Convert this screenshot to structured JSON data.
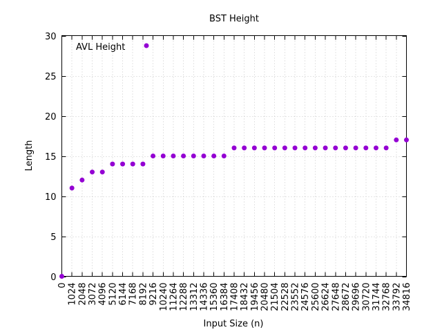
{
  "chart_data": {
    "type": "scatter",
    "title": "BST Height",
    "xlabel": "Input Size (n)",
    "ylabel": "Length",
    "xlim": [
      0,
      34816
    ],
    "ylim": [
      0,
      30
    ],
    "grid": true,
    "legend_position": "top-left",
    "xticks": [
      0,
      1024,
      2048,
      3072,
      4096,
      5120,
      6144,
      7168,
      8192,
      9216,
      10240,
      11264,
      12288,
      13312,
      14336,
      15360,
      16384,
      17408,
      18432,
      19456,
      20480,
      21504,
      22528,
      23552,
      24576,
      25600,
      26624,
      27648,
      28672,
      29696,
      30720,
      31744,
      32768,
      33792,
      34816
    ],
    "yticks": [
      0,
      5,
      10,
      15,
      20,
      25,
      30
    ],
    "series": [
      {
        "name": "AVL Height",
        "color": "#9400D3",
        "x": [
          0,
          1024,
          2048,
          3072,
          4096,
          5120,
          6144,
          7168,
          8192,
          9216,
          10240,
          11264,
          12288,
          13312,
          14336,
          15360,
          16384,
          17408,
          18432,
          19456,
          20480,
          21504,
          22528,
          23552,
          24576,
          25600,
          26624,
          27648,
          28672,
          29696,
          30720,
          31744,
          32768,
          33792,
          34816
        ],
        "y": [
          0,
          11,
          12,
          13,
          13,
          14,
          14,
          14,
          14,
          15,
          15,
          15,
          15,
          15,
          15,
          15,
          15,
          16,
          16,
          16,
          16,
          16,
          16,
          16,
          16,
          16,
          16,
          16,
          16,
          16,
          16,
          16,
          16,
          17,
          17
        ]
      }
    ]
  }
}
